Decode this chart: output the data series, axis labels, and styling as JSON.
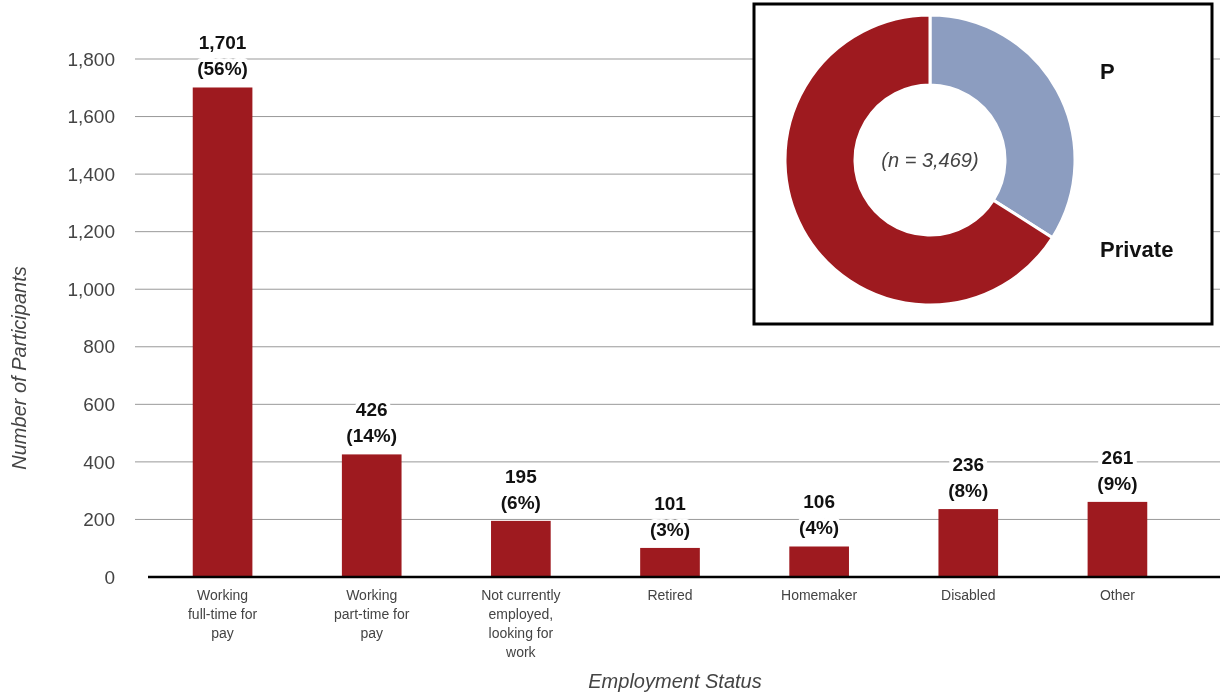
{
  "chart_data": [
    {
      "type": "bar",
      "xlabel": "Employment Status",
      "ylabel": "Number of Participants",
      "categories": [
        "Working full-time for pay",
        "Working part-time for pay",
        "Not currently employed, looking for work",
        "Retired",
        "Homemaker",
        "Disabled",
        "Other"
      ],
      "values": [
        1701,
        426,
        195,
        101,
        106,
        236,
        261
      ],
      "value_labels": [
        "1,701 (56%)",
        "426 (14%)",
        "195 (6%)",
        "101 (3%)",
        "106 (4%)",
        "236 (8%)",
        "261 (9%)"
      ],
      "color": "#9e1a1f",
      "ylim": [
        0,
        1800
      ],
      "yticks": [
        {
          "value": 0,
          "label": "0"
        },
        {
          "value": 200,
          "label": "200"
        },
        {
          "value": 400,
          "label": "400"
        },
        {
          "value": 600,
          "label": "600"
        },
        {
          "value": 800,
          "label": "800"
        },
        {
          "value": 1000,
          "label": "1,000"
        },
        {
          "value": 1200,
          "label": "1,200"
        },
        {
          "value": 1400,
          "label": "1,400"
        },
        {
          "value": 1600,
          "label": "1,600"
        },
        {
          "value": 1800,
          "label": "1,800"
        }
      ],
      "grid": "y"
    },
    {
      "type": "donut",
      "categories": [
        "P",
        "Private"
      ],
      "values": [
        34,
        66
      ],
      "colors": [
        "#8c9dc0",
        "#9e1a1f"
      ],
      "annotations": [
        "(n = 3,469)"
      ]
    }
  ]
}
